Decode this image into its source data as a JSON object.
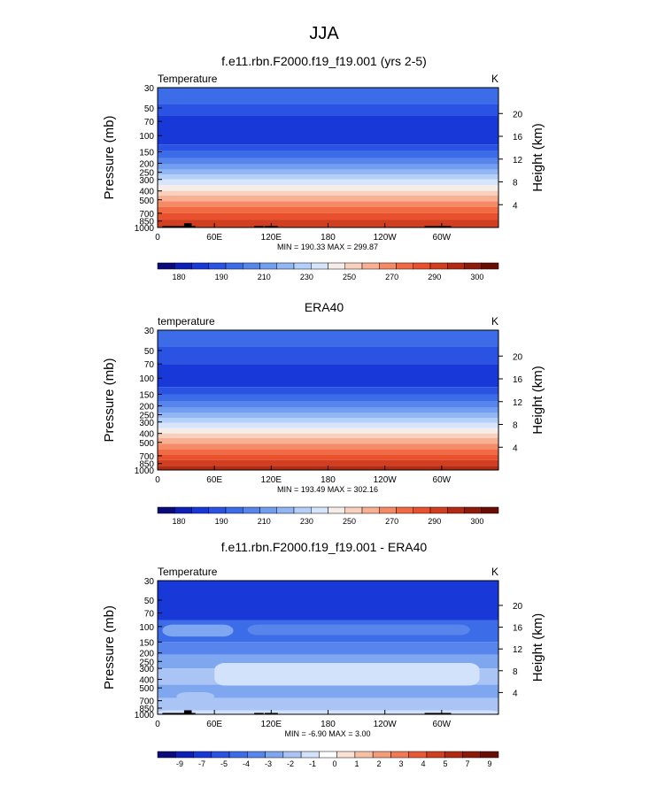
{
  "figure": {
    "title": "JJA"
  },
  "colors": {
    "temperature_palette": [
      "#0a0a7a",
      "#0d1fb4",
      "#1838d8",
      "#2a52e3",
      "#3d6ce8",
      "#5785ec",
      "#729eef",
      "#92b6f3",
      "#b4cff8",
      "#d6e5fb",
      "#f6ece8",
      "#f8d0bd",
      "#f7b093",
      "#f58a66",
      "#f06a44",
      "#e8502e",
      "#d13e20",
      "#b22a14",
      "#8e1a0c",
      "#6a0d05"
    ],
    "difference_palette": [
      "#0a0a7a",
      "#0d1fb4",
      "#1838d8",
      "#2a52e3",
      "#3d6ce8",
      "#5785ec",
      "#7fa7f0",
      "#a9c4f5",
      "#d2e2fb",
      "#ffffff",
      "#fbe1d3",
      "#f7c0a4",
      "#f39c79",
      "#ef7a55",
      "#e75a37",
      "#cf4022",
      "#b02a13",
      "#8c1a0b",
      "#6a0d05"
    ],
    "terrain": "#000000"
  },
  "chart_data": [
    {
      "type": "heatmap",
      "title": "f.e11.rbn.F2000.f19_f19.001 (yrs 2-5)",
      "variable_label": "Temperature",
      "units": "K",
      "ylabel": "Pressure (mb)",
      "ylabel_right": "Height (km)",
      "x_tick_labels": [
        "0",
        "60E",
        "120E",
        "180",
        "120W",
        "60W"
      ],
      "x_ticks_deg": [
        0,
        60,
        120,
        180,
        240,
        300
      ],
      "xlim": [
        0,
        360
      ],
      "y_tick_labels": [
        "30",
        "50",
        "70",
        "100",
        "150",
        "200",
        "250",
        "300",
        "400",
        "500",
        "700",
        "850",
        "1000"
      ],
      "y_ticks_mb": [
        30,
        50,
        70,
        100,
        150,
        200,
        250,
        300,
        400,
        500,
        700,
        850,
        1000
      ],
      "ylim_mb": [
        1000,
        30
      ],
      "y_scale": "log",
      "height_tick_labels": [
        "4",
        "8",
        "12",
        "16",
        "20"
      ],
      "height_ticks_km": [
        4,
        8,
        12,
        16,
        20
      ],
      "stats": "MIN = 190.33  MAX = 299.87",
      "colorbar_labels": [
        "180",
        "190",
        "210",
        "230",
        "250",
        "270",
        "290",
        "300"
      ],
      "contour_bands": [
        {
          "p_top": 30,
          "p_bot": 45,
          "level": 4
        },
        {
          "p_top": 45,
          "p_bot": 60,
          "level": 3
        },
        {
          "p_top": 60,
          "p_bot": 125,
          "level": 2
        },
        {
          "p_top": 125,
          "p_bot": 145,
          "level": 3
        },
        {
          "p_top": 145,
          "p_bot": 175,
          "level": 4
        },
        {
          "p_top": 175,
          "p_bot": 205,
          "level": 5
        },
        {
          "p_top": 205,
          "p_bot": 235,
          "level": 6
        },
        {
          "p_top": 235,
          "p_bot": 265,
          "level": 7
        },
        {
          "p_top": 265,
          "p_bot": 300,
          "level": 8
        },
        {
          "p_top": 300,
          "p_bot": 345,
          "level": 9
        },
        {
          "p_top": 345,
          "p_bot": 400,
          "level": 10
        },
        {
          "p_top": 400,
          "p_bot": 450,
          "level": 11
        },
        {
          "p_top": 450,
          "p_bot": 520,
          "level": 12
        },
        {
          "p_top": 520,
          "p_bot": 600,
          "level": 13
        },
        {
          "p_top": 600,
          "p_bot": 700,
          "level": 14
        },
        {
          "p_top": 700,
          "p_bot": 820,
          "level": 15
        },
        {
          "p_top": 820,
          "p_bot": 1000,
          "level": 16
        }
      ],
      "terrain_blocks": [
        {
          "lon0": 5,
          "lon1": 40,
          "p_top": 965
        },
        {
          "lon0": 28,
          "lon1": 36,
          "p_top": 900
        },
        {
          "lon0": 102,
          "lon1": 112,
          "p_top": 965
        },
        {
          "lon0": 113,
          "lon1": 127,
          "p_top": 965
        },
        {
          "lon0": 282,
          "lon1": 310,
          "p_top": 965
        }
      ]
    },
    {
      "type": "heatmap",
      "title": "ERA40",
      "variable_label": "temperature",
      "units": "K",
      "ylabel": "Pressure (mb)",
      "ylabel_right": "Height (km)",
      "x_tick_labels": [
        "0",
        "60E",
        "120E",
        "180",
        "120W",
        "60W"
      ],
      "x_ticks_deg": [
        0,
        60,
        120,
        180,
        240,
        300
      ],
      "xlim": [
        0,
        360
      ],
      "y_tick_labels": [
        "30",
        "50",
        "70",
        "100",
        "150",
        "200",
        "250",
        "300",
        "400",
        "500",
        "700",
        "850",
        "1000"
      ],
      "y_ticks_mb": [
        30,
        50,
        70,
        100,
        150,
        200,
        250,
        300,
        400,
        500,
        700,
        850,
        1000
      ],
      "ylim_mb": [
        1000,
        30
      ],
      "y_scale": "log",
      "height_tick_labels": [
        "4",
        "8",
        "12",
        "16",
        "20"
      ],
      "height_ticks_km": [
        4,
        8,
        12,
        16,
        20
      ],
      "stats": "MIN = 193.49  MAX = 302.16",
      "colorbar_labels": [
        "180",
        "190",
        "210",
        "230",
        "250",
        "270",
        "290",
        "300"
      ],
      "contour_bands": [
        {
          "p_top": 30,
          "p_bot": 45,
          "level": 4
        },
        {
          "p_top": 45,
          "p_bot": 70,
          "level": 3
        },
        {
          "p_top": 70,
          "p_bot": 125,
          "level": 2
        },
        {
          "p_top": 125,
          "p_bot": 150,
          "level": 3
        },
        {
          "p_top": 150,
          "p_bot": 180,
          "level": 4
        },
        {
          "p_top": 180,
          "p_bot": 210,
          "level": 5
        },
        {
          "p_top": 210,
          "p_bot": 240,
          "level": 6
        },
        {
          "p_top": 240,
          "p_bot": 270,
          "level": 7
        },
        {
          "p_top": 270,
          "p_bot": 305,
          "level": 8
        },
        {
          "p_top": 305,
          "p_bot": 350,
          "level": 9
        },
        {
          "p_top": 350,
          "p_bot": 400,
          "level": 10
        },
        {
          "p_top": 400,
          "p_bot": 450,
          "level": 11
        },
        {
          "p_top": 450,
          "p_bot": 520,
          "level": 12
        },
        {
          "p_top": 520,
          "p_bot": 600,
          "level": 13
        },
        {
          "p_top": 600,
          "p_bot": 680,
          "level": 14
        },
        {
          "p_top": 680,
          "p_bot": 780,
          "level": 15
        },
        {
          "p_top": 780,
          "p_bot": 900,
          "level": 16
        },
        {
          "p_top": 900,
          "p_bot": 1000,
          "level": 17
        }
      ],
      "terrain_blocks": []
    },
    {
      "type": "heatmap",
      "title": "f.e11.rbn.F2000.f19_f19.001 - ERA40",
      "variable_label": "Temperature",
      "units": "K",
      "ylabel": "Pressure (mb)",
      "ylabel_right": "Height (km)",
      "x_tick_labels": [
        "0",
        "60E",
        "120E",
        "180",
        "120W",
        "60W"
      ],
      "x_ticks_deg": [
        0,
        60,
        120,
        180,
        240,
        300
      ],
      "xlim": [
        0,
        360
      ],
      "y_tick_labels": [
        "30",
        "50",
        "70",
        "100",
        "150",
        "200",
        "250",
        "300",
        "400",
        "500",
        "700",
        "850",
        "1000"
      ],
      "y_ticks_mb": [
        30,
        50,
        70,
        100,
        150,
        200,
        250,
        300,
        400,
        500,
        700,
        850,
        1000
      ],
      "ylim_mb": [
        1000,
        30
      ],
      "y_scale": "log",
      "height_tick_labels": [
        "4",
        "8",
        "12",
        "16",
        "20"
      ],
      "height_ticks_km": [
        4,
        8,
        12,
        16,
        20
      ],
      "stats": "MIN = -6.90  MAX =  3.00",
      "colorbar_labels": [
        "-9",
        "-7",
        "-5",
        "-4",
        "-3",
        "-2",
        "-1",
        "0",
        "1",
        "2",
        "3",
        "4",
        "5",
        "7",
        "9"
      ],
      "contour_bands": [
        {
          "p_top": 30,
          "p_bot": 85,
          "level": 2
        },
        {
          "p_top": 85,
          "p_bot": 150,
          "level": 4
        },
        {
          "p_top": 150,
          "p_bot": 210,
          "level": 5
        },
        {
          "p_top": 210,
          "p_bot": 300,
          "level": 6
        },
        {
          "p_top": 300,
          "p_bot": 460,
          "level": 7
        },
        {
          "p_top": 460,
          "p_bot": 650,
          "level": 6
        },
        {
          "p_top": 650,
          "p_bot": 1000,
          "level": 7
        }
      ],
      "contour_patches": [
        {
          "lon0": 5,
          "lon1": 80,
          "p_top": 95,
          "p_bot": 130,
          "level": 6
        },
        {
          "lon0": 95,
          "lon1": 330,
          "p_top": 95,
          "p_bot": 125,
          "level": 5
        },
        {
          "lon0": 60,
          "lon1": 340,
          "p_top": 260,
          "p_bot": 470,
          "level": 8
        },
        {
          "lon0": 20,
          "lon1": 60,
          "p_top": 560,
          "p_bot": 700,
          "level": 7
        },
        {
          "lon0": 0,
          "lon1": 360,
          "p_top": 900,
          "p_bot": 1000,
          "level": 8
        }
      ],
      "terrain_blocks": [
        {
          "lon0": 5,
          "lon1": 40,
          "p_top": 965
        },
        {
          "lon0": 28,
          "lon1": 36,
          "p_top": 900
        },
        {
          "lon0": 102,
          "lon1": 112,
          "p_top": 965
        },
        {
          "lon0": 113,
          "lon1": 127,
          "p_top": 965
        },
        {
          "lon0": 282,
          "lon1": 310,
          "p_top": 965
        }
      ]
    }
  ]
}
